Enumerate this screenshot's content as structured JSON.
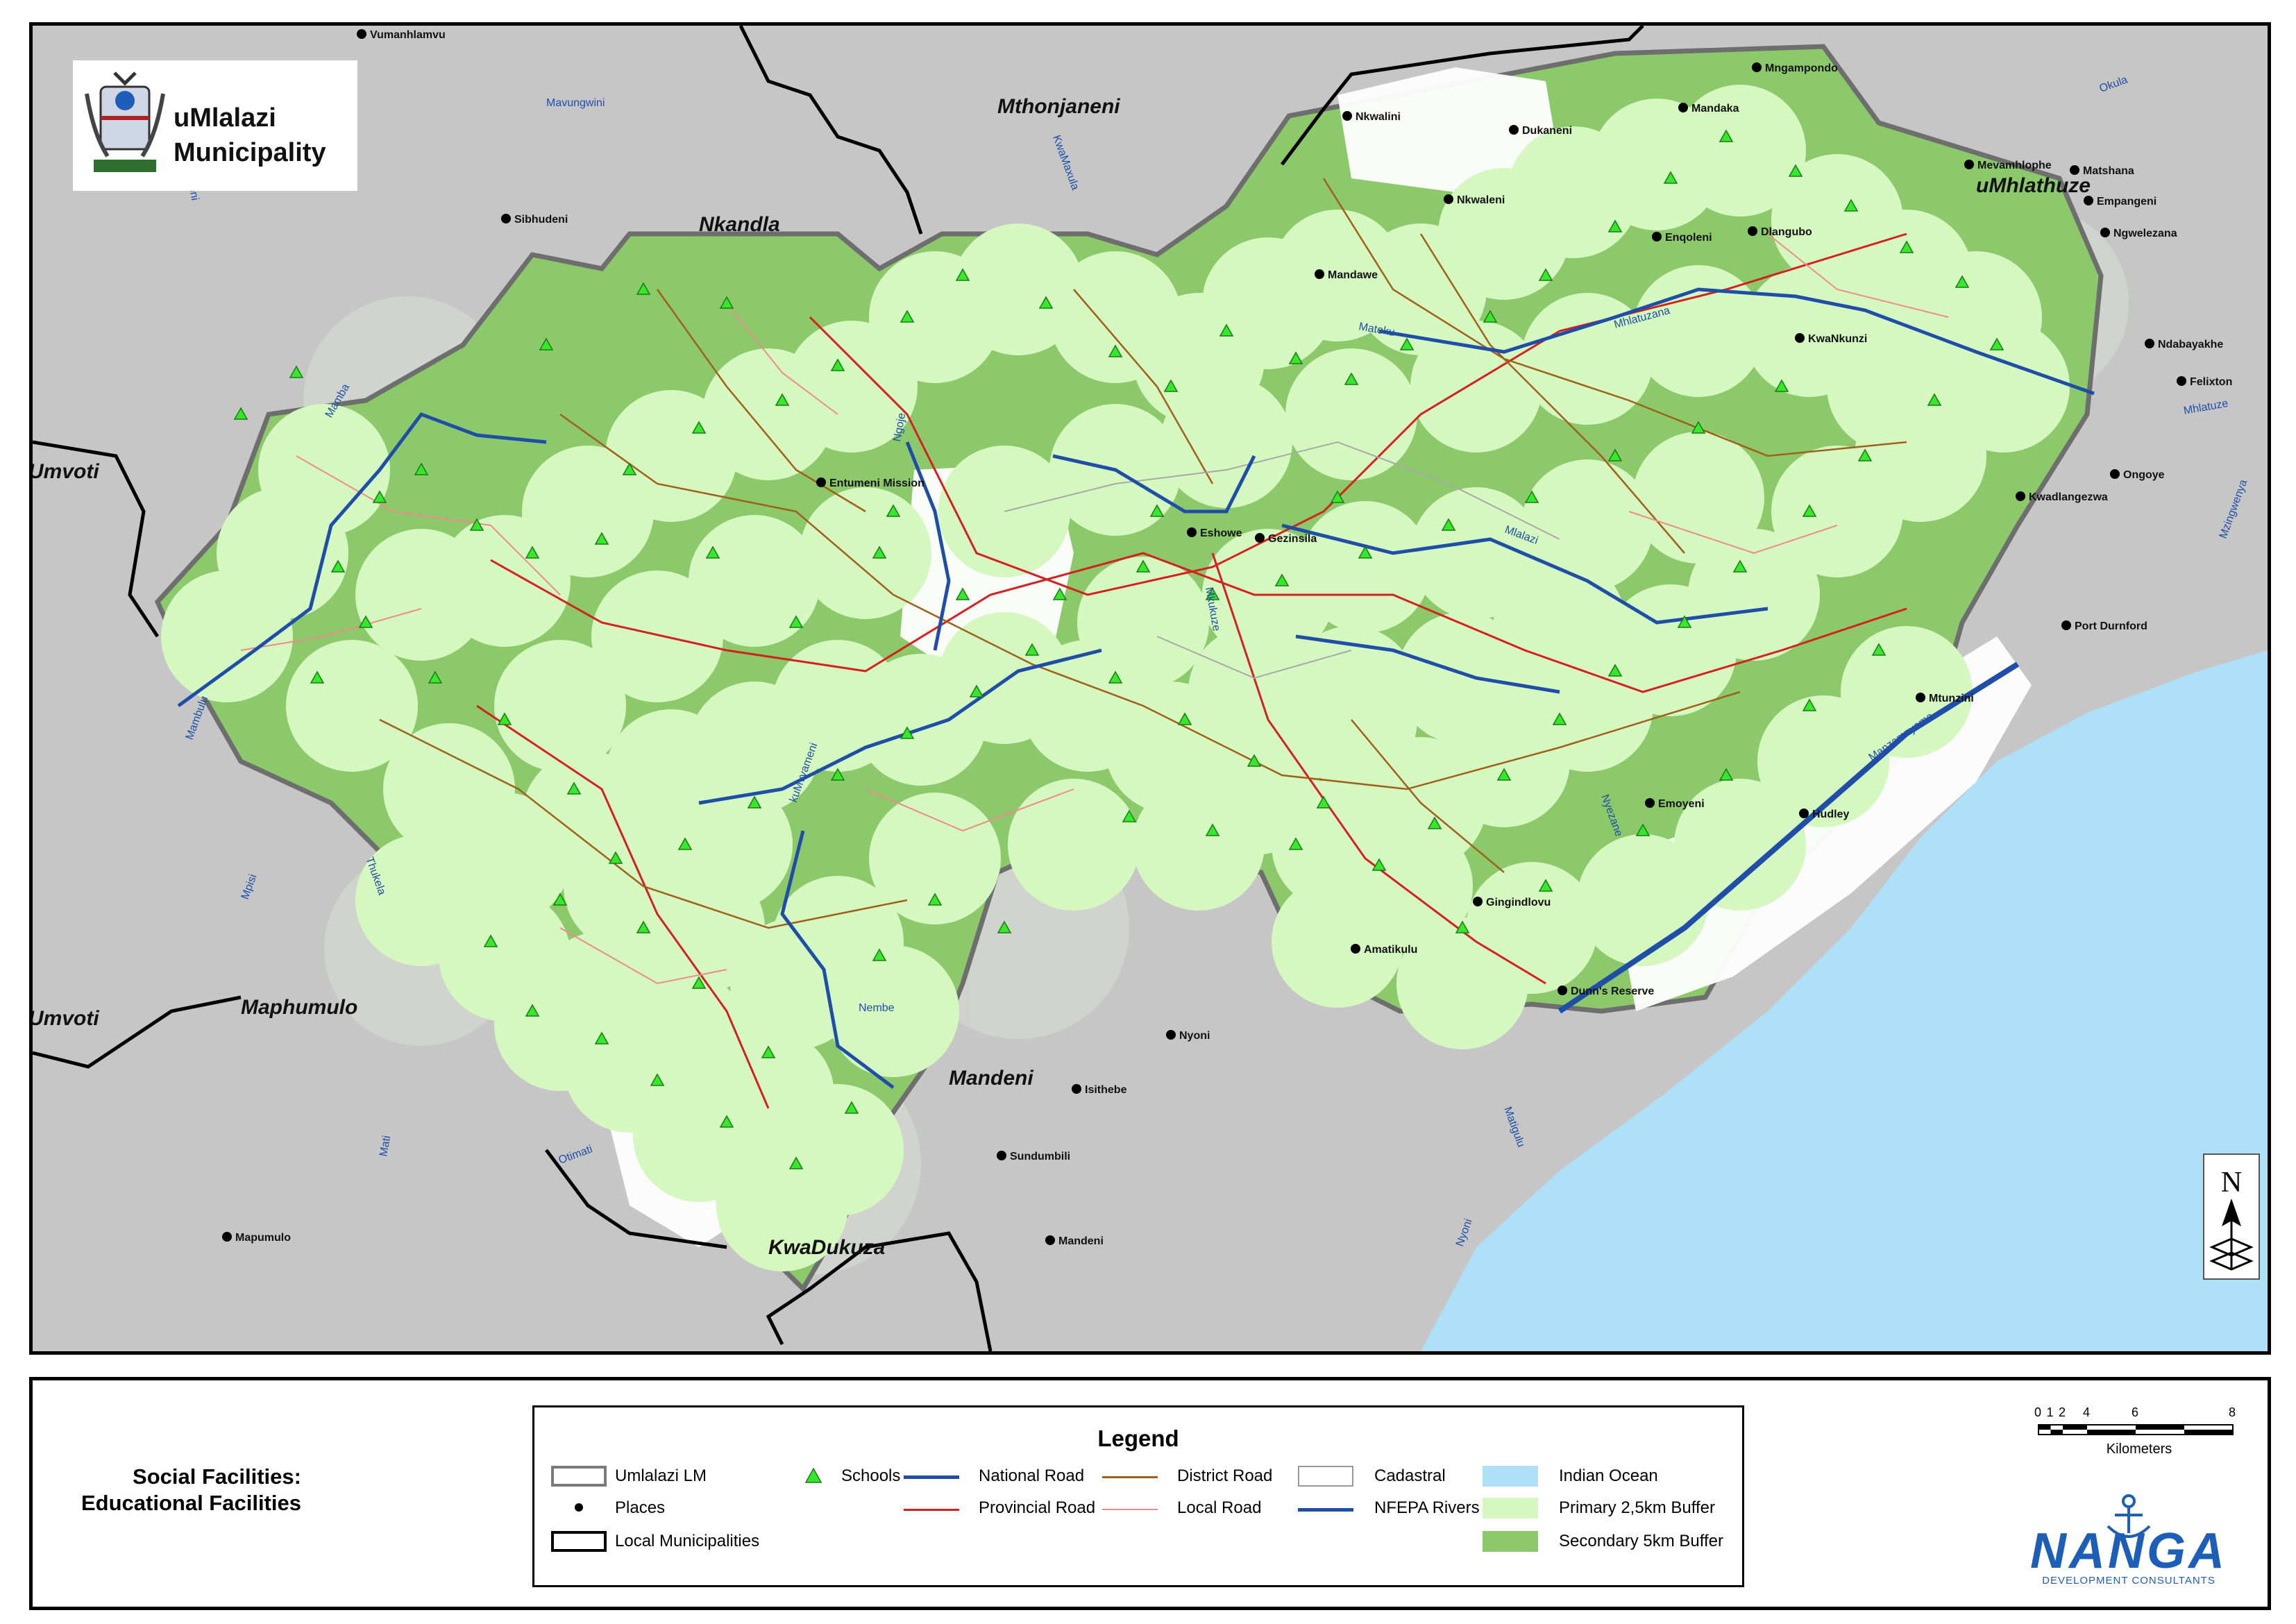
{
  "logo": {
    "title_line1": "uMlalazi",
    "title_line2": "Municipality"
  },
  "map": {
    "regions": [
      {
        "name": "Mthonjaneni"
      },
      {
        "name": "Nkandla"
      },
      {
        "name": "uMhlathuze"
      },
      {
        "name": "Umvoti"
      },
      {
        "name": "Umvoti"
      },
      {
        "name": "Maphumulo"
      },
      {
        "name": "Mandeni"
      },
      {
        "name": "KwaDukuza"
      }
    ],
    "places": [
      "Vumanhlamvu",
      "Sibhudeni",
      "Nkwalini",
      "Dukaneni",
      "Mngampondo",
      "Mandaka",
      "Nkwaleni",
      "Enqoleni",
      "Dlangubo",
      "Mandawe",
      "KwaNkunzi",
      "Entumeni Mission",
      "Eshowe",
      "Gezinsila",
      "Mevamhlophe",
      "Matshana",
      "Empangeni",
      "Ngwelezana",
      "Ndabayakhe",
      "Felixton",
      "Ongoye",
      "Kwadlangezwa",
      "Port Durnford",
      "Mtunzini",
      "Emoyeni",
      "Hudley",
      "Gingindlovu",
      "Amatikulu",
      "Dunn's Reserve",
      "Nyoni",
      "Isithebe",
      "Sundumbili",
      "Mandeni",
      "Mapumulo"
    ],
    "rivers": [
      "Mavungwini",
      "Mamba",
      "Ngoje",
      "Mhlatuzana",
      "Mateku",
      "Mlalazi",
      "Mhlatuze",
      "Mzingwenya",
      "Okula",
      "Mambulu",
      "kuMvyameni",
      "Thukela",
      "Mpisi",
      "Mati",
      "Otimati",
      "Nembe",
      "Matigulu",
      "Nyoni",
      "Nyezane",
      "Manzamnyama",
      "Mkukuze",
      "KwaMaxula",
      "Nseleni"
    ],
    "compass_label": "N"
  },
  "panel": {
    "title_line1": "Social Facilities:",
    "title_line2": "Educational Facilities"
  },
  "legend": {
    "title": "Legend",
    "items": {
      "lm": "Umlalazi LM",
      "places": "Places",
      "local_municipalities": "Local Municipalities",
      "schools": "Schools",
      "national_road": "National Road",
      "provincial_road": "Provincial Road",
      "district_road": "District Road",
      "local_road": "Local Road",
      "cadastral": "Cadastral",
      "nfepa_rivers": "NFEPA Rivers",
      "indian_ocean": "Indian Ocean",
      "primary_buffer": "Primary 2,5km Buffer",
      "secondary_buffer": "Secondary 5km Buffer"
    }
  },
  "scale": {
    "ticks": [
      "0",
      "1",
      "2",
      "4",
      "6",
      "8"
    ],
    "unit": "Kilometers"
  },
  "brand": {
    "name": "NANGA",
    "tagline": "DEVELOPMENT CONSULTANTS"
  },
  "colors": {
    "background": "#c8c8c8",
    "ocean": "#aee0f7",
    "primary_buffer": "#d5f7c0",
    "secondary_buffer": "#8cc96b",
    "school": "#36e82a",
    "national_road": "#1f4ea8",
    "provincial_road": "#d62020",
    "district_road": "#a0601a",
    "local_road": "#f08a8a",
    "river": "#1f4ea8",
    "brand": "#1d5fb8"
  }
}
